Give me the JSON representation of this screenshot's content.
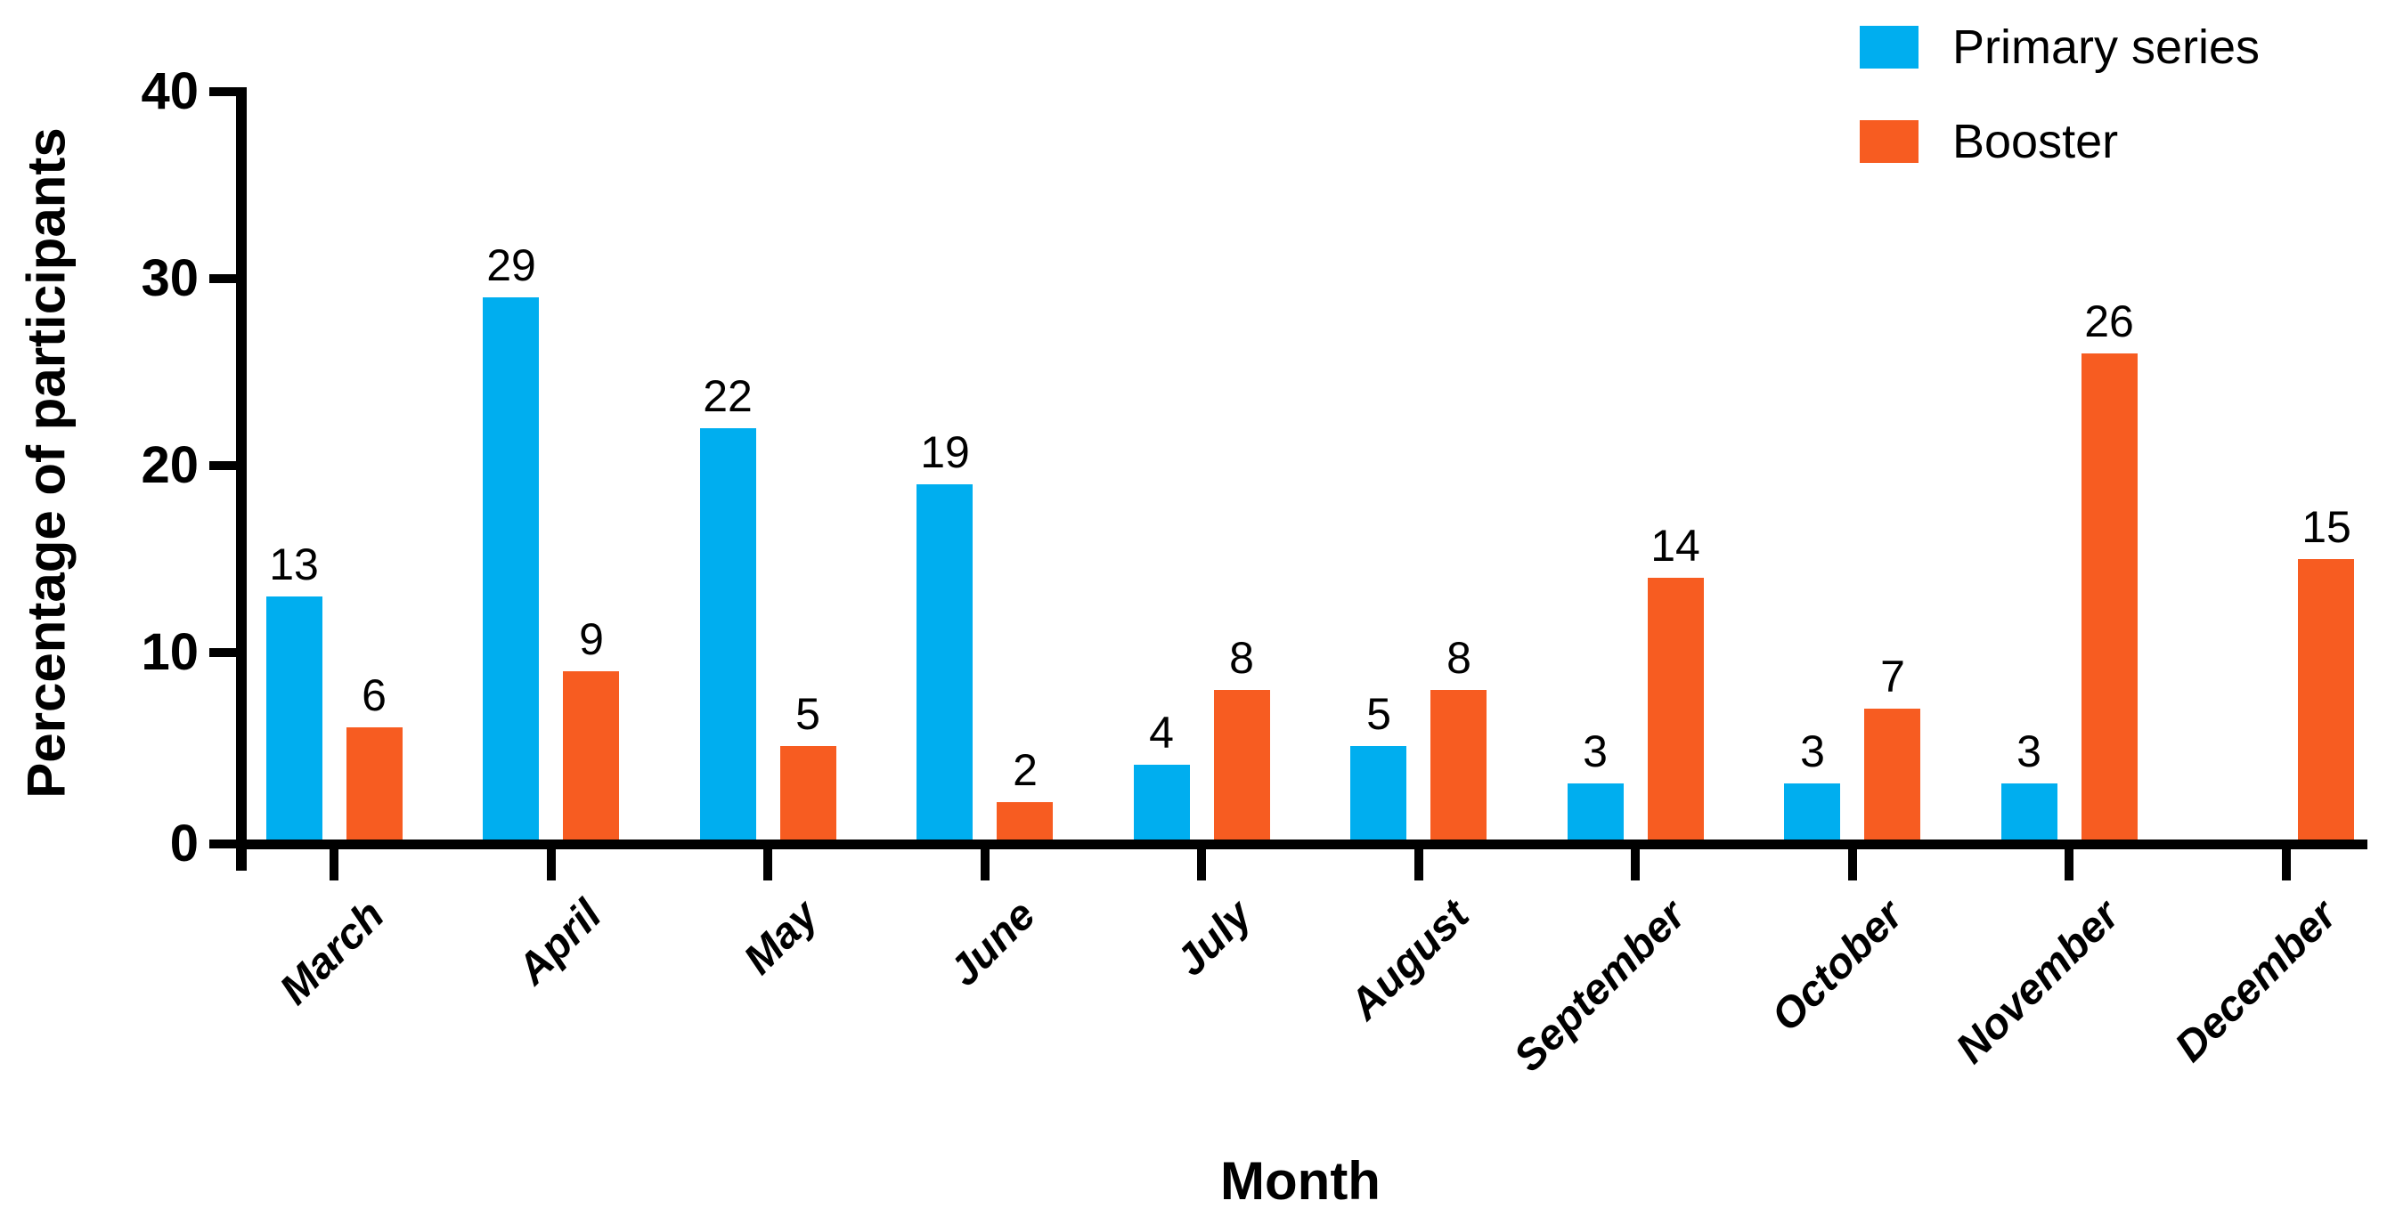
{
  "chart_data": {
    "type": "bar",
    "title": "",
    "categories": [
      "March",
      "April",
      "May",
      "June",
      "July",
      "August",
      "September",
      "October",
      "November",
      "December"
    ],
    "series": [
      {
        "name": "Primary series",
        "color": "#00AEEF",
        "values": [
          13,
          29,
          22,
          19,
          4,
          5,
          3,
          3,
          3,
          0
        ]
      },
      {
        "name": "Booster",
        "color": "#F75C21",
        "values": [
          6,
          9,
          5,
          2,
          8,
          8,
          14,
          7,
          26,
          15
        ]
      }
    ],
    "xlabel": "Month",
    "ylabel": "Percentage of participants",
    "ylim": [
      0,
      40
    ],
    "yticks": [
      0,
      10,
      20,
      30,
      40
    ],
    "grid": false,
    "legend_position": "top-right",
    "bar_value_labels": true,
    "axis_color": "#000000",
    "background_color": "#ffffff"
  }
}
